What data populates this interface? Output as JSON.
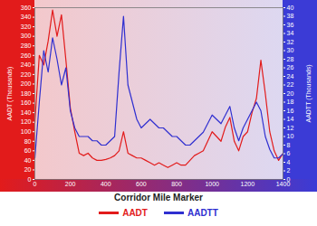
{
  "chart_data": {
    "type": "line",
    "x_label": "Corridor Mile Marker",
    "y_label": "AADT (Thousands)",
    "y2_label": "AADTT (Thousands)",
    "x": [
      0,
      25,
      50,
      75,
      100,
      125,
      150,
      175,
      200,
      225,
      250,
      275,
      300,
      325,
      350,
      375,
      400,
      425,
      450,
      475,
      500,
      525,
      550,
      575,
      600,
      625,
      650,
      675,
      700,
      725,
      750,
      775,
      800,
      825,
      850,
      875,
      900,
      925,
      950,
      975,
      1000,
      1025,
      1050,
      1075,
      1100,
      1125,
      1150,
      1175,
      1200,
      1225,
      1250,
      1275,
      1300,
      1325,
      1350,
      1375,
      1400
    ],
    "series": [
      {
        "name": "AADT",
        "color": "#e21b1b",
        "axis": "y",
        "values": [
          120,
          260,
          240,
          290,
          355,
          300,
          345,
          250,
          150,
          100,
          55,
          50,
          55,
          45,
          40,
          40,
          42,
          45,
          50,
          60,
          100,
          55,
          50,
          45,
          45,
          40,
          35,
          30,
          35,
          30,
          25,
          30,
          35,
          30,
          30,
          40,
          50,
          55,
          60,
          80,
          100,
          90,
          80,
          110,
          130,
          80,
          60,
          90,
          100,
          140,
          170,
          250,
          180,
          100,
          60,
          40,
          55
        ]
      },
      {
        "name": "AADTT",
        "color": "#2f2fd0",
        "axis": "y2",
        "values": [
          5,
          18,
          30,
          25,
          33,
          28,
          22,
          26,
          16,
          12,
          10,
          10,
          10,
          9,
          9,
          8,
          8,
          9,
          10,
          25,
          38,
          22,
          18,
          14,
          12,
          13,
          14,
          13,
          12,
          12,
          11,
          10,
          10,
          9,
          8,
          8,
          9,
          10,
          11,
          13,
          15,
          14,
          13,
          15,
          17,
          12,
          9,
          12,
          14,
          16,
          18,
          16,
          10,
          7,
          5,
          5,
          6
        ]
      }
    ],
    "xlim": [
      0,
      1400
    ],
    "xticks": [
      0,
      200,
      400,
      600,
      800,
      1000,
      1200,
      1400
    ],
    "ylim": [
      0,
      360
    ],
    "yticks": [
      0,
      20,
      40,
      60,
      80,
      100,
      120,
      140,
      160,
      180,
      200,
      220,
      240,
      260,
      280,
      300,
      320,
      340,
      360
    ],
    "y2lim": [
      0,
      40
    ],
    "y2ticks": [
      0,
      2,
      4,
      6,
      8,
      10,
      12,
      14,
      16,
      18,
      20,
      22,
      24,
      26,
      28,
      30,
      32,
      34,
      36,
      38,
      40
    ],
    "grid": false,
    "legend": "bottom"
  }
}
